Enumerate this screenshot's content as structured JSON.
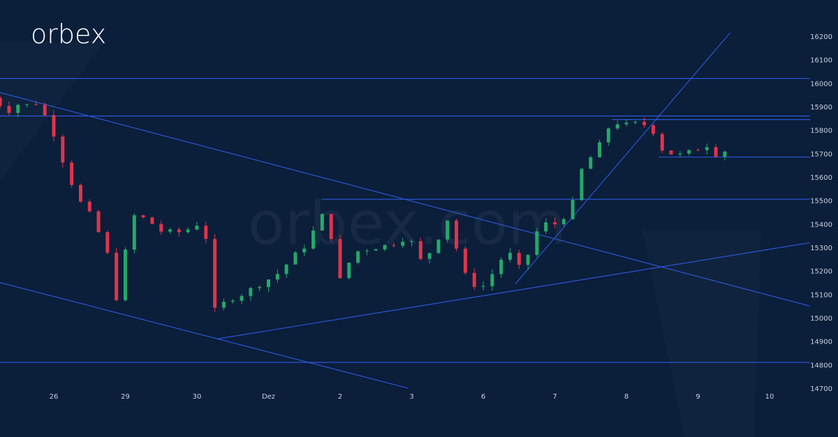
{
  "brand": {
    "logo_text": "orbex",
    "watermark_text": "orbex.com",
    "background_color": "#0b1e3a",
    "line_color": "#2d5be3",
    "up_color": "#26a869",
    "down_color": "#e0344a"
  },
  "chart_data": {
    "type": "candlestick",
    "y_axis": {
      "position": "right",
      "range": [
        14700,
        16250
      ],
      "ticks": [
        16200,
        16100,
        16000,
        15900,
        15800,
        15700,
        15600,
        15500,
        15400,
        15300,
        15200,
        15100,
        15000,
        14900,
        14800,
        14700
      ]
    },
    "x_axis": {
      "range": [
        -1,
        10.7
      ],
      "tick_labels": [
        {
          "x": 0,
          "label": "26"
        },
        {
          "x": 1,
          "label": "29"
        },
        {
          "x": 2,
          "label": "30"
        },
        {
          "x": 3,
          "label": "Dez"
        },
        {
          "x": 4,
          "label": "2"
        },
        {
          "x": 5,
          "label": "3"
        },
        {
          "x": 6,
          "label": "6"
        },
        {
          "x": 7,
          "label": "7"
        },
        {
          "x": 8,
          "label": "8"
        },
        {
          "x": 9,
          "label": "9"
        },
        {
          "x": 10,
          "label": "10"
        }
      ]
    },
    "horizontal_levels": [
      {
        "y": 16020,
        "x_from": -1,
        "x_to": 10.65
      },
      {
        "y": 15860,
        "x_from": -1,
        "x_to": 10.65
      },
      {
        "y": 15845,
        "x_from": 7.8,
        "x_to": 10.65
      },
      {
        "y": 15685,
        "x_from": 8.45,
        "x_to": 10.65
      },
      {
        "y": 15505,
        "x_from": 3.74,
        "x_to": 10.65
      },
      {
        "y": 14810,
        "x_from": -1,
        "x_to": 10.65
      }
    ],
    "trendlines": [
      {
        "x1": -1,
        "y1": 15980,
        "x2": 10.65,
        "y2": 15050
      },
      {
        "x1": -1,
        "y1": 15170,
        "x2": 4.95,
        "y2": 14700
      },
      {
        "x1": 2.28,
        "y1": 14910,
        "x2": 10.65,
        "y2": 15320
      },
      {
        "x1": 6.45,
        "y1": 15145,
        "x2": 9.45,
        "y2": 16215
      }
    ],
    "candles_per_day": 8,
    "close_path": [
      [
        -1,
        15960
      ],
      [
        -0.8,
        15925
      ],
      [
        -0.65,
        15880
      ],
      [
        -0.5,
        15910
      ],
      [
        -0.35,
        15905
      ],
      [
        -0.25,
        15915
      ],
      [
        -0.05,
        15830
      ],
      [
        0.15,
        15650
      ],
      [
        0.35,
        15500
      ],
      [
        0.55,
        15420
      ],
      [
        0.75,
        15270
      ],
      [
        0.9,
        15050
      ],
      [
        0.95,
        15120
      ],
      [
        1.05,
        15440
      ],
      [
        1.3,
        15420
      ],
      [
        1.5,
        15370
      ],
      [
        1.7,
        15360
      ],
      [
        1.9,
        15380
      ],
      [
        2.05,
        15410
      ],
      [
        2.15,
        15320
      ],
      [
        2.25,
        15030
      ],
      [
        2.45,
        15080
      ],
      [
        2.7,
        15110
      ],
      [
        2.9,
        15150
      ],
      [
        3.1,
        15180
      ],
      [
        3.35,
        15260
      ],
      [
        3.55,
        15320
      ],
      [
        3.74,
        15440
      ],
      [
        3.9,
        15330
      ],
      [
        4.0,
        15160
      ],
      [
        4.2,
        15280
      ],
      [
        4.45,
        15300
      ],
      [
        4.7,
        15310
      ],
      [
        4.95,
        15350
      ],
      [
        5.15,
        15230
      ],
      [
        5.35,
        15330
      ],
      [
        5.5,
        15420
      ],
      [
        5.6,
        15320
      ],
      [
        5.75,
        15180
      ],
      [
        5.95,
        15120
      ],
      [
        6.05,
        15150
      ],
      [
        6.25,
        15250
      ],
      [
        6.35,
        15280
      ],
      [
        6.55,
        15190
      ],
      [
        6.7,
        15350
      ],
      [
        6.85,
        15400
      ],
      [
        7.05,
        15400
      ],
      [
        7.3,
        15510
      ],
      [
        7.4,
        15670
      ],
      [
        7.55,
        15690
      ],
      [
        7.8,
        15840
      ],
      [
        8.0,
        15820
      ],
      [
        8.2,
        15830
      ],
      [
        8.35,
        15810
      ],
      [
        8.5,
        15720
      ],
      [
        8.7,
        15690
      ],
      [
        8.85,
        15700
      ],
      [
        9.05,
        15730
      ],
      [
        9.15,
        15740
      ],
      [
        9.25,
        15700
      ],
      [
        9.45,
        15720
      ]
    ]
  }
}
